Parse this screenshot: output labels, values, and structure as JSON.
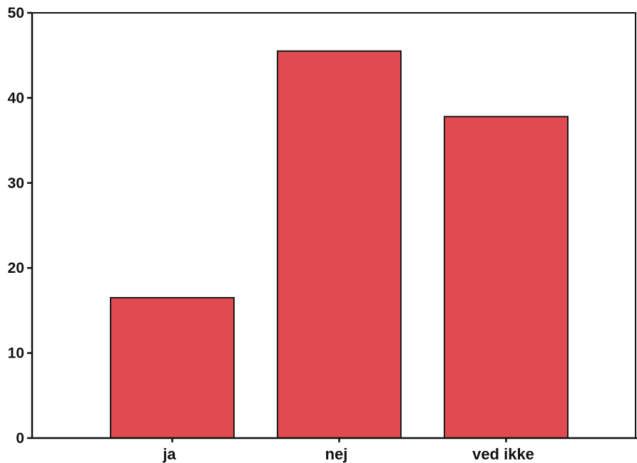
{
  "chart_data": {
    "type": "bar",
    "categories": [
      "ja",
      "nej",
      "ved ikke"
    ],
    "values": [
      16.5,
      45.5,
      37.8
    ],
    "title": "",
    "xlabel": "",
    "ylabel": "",
    "ylim": [
      0,
      50
    ],
    "yticks": [
      "0",
      "10",
      "20",
      "30",
      "40",
      "50"
    ],
    "grid": false,
    "legend": false,
    "bar_color": "#e04a50"
  }
}
